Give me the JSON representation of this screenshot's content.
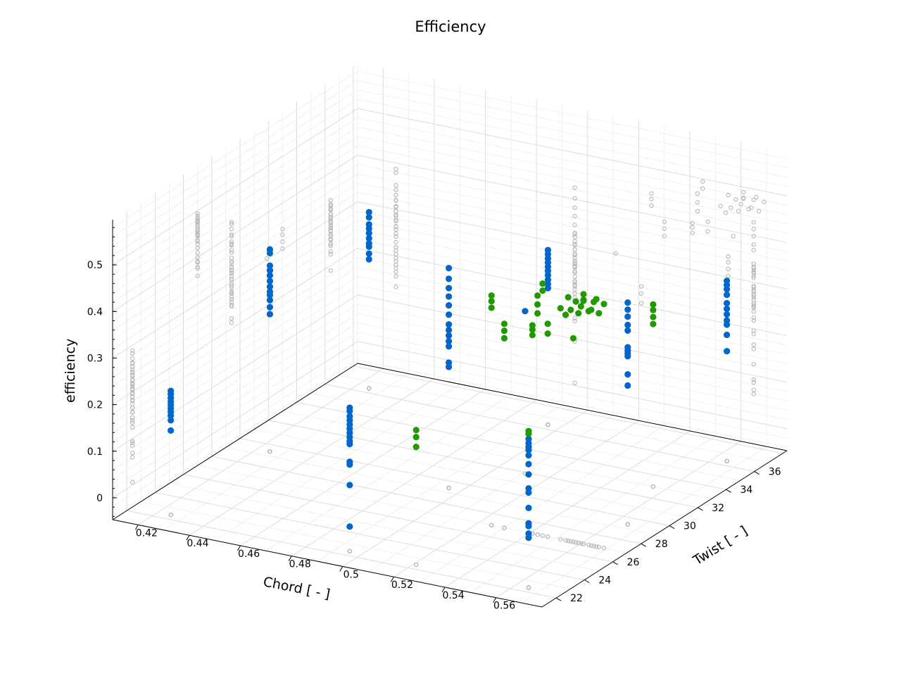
{
  "chart_data": {
    "type": "scatter",
    "title": "Efficiency",
    "xlabel": "Chord [ - ]",
    "ylabel": "Twist [ - ]",
    "zlabel": "efficiency",
    "xlim": [
      0.41,
      0.578
    ],
    "ylim": [
      21,
      38.3
    ],
    "zlim": [
      -0.047,
      0.597
    ],
    "xticks": [
      "0.42",
      "0.44",
      "0.46",
      "0.48",
      "0.5",
      "0.52",
      "0.54",
      "0.56"
    ],
    "yticks": [
      "22",
      "24",
      "26",
      "28",
      "30",
      "32",
      "34",
      "36"
    ],
    "zticks": [
      "0",
      "0.1",
      "0.2",
      "0.3",
      "0.4",
      "0.5"
    ],
    "grid": true,
    "projections": "gray hollow markers on floor and back walls",
    "colors": {
      "blue": "#0066cc",
      "green": "#229900",
      "projection": "#bbbbbb"
    },
    "series": [
      {
        "name": "blue",
        "columns": [
          {
            "chord": 0.425,
            "twist": 22.4,
            "efficiency": [
              0.219,
              0.212,
              0.204,
              0.196,
              0.189,
              0.181,
              0.174,
              0.166,
              0.156,
              0.134
            ]
          },
          {
            "chord": 0.495,
            "twist": 22.4,
            "efficiency": [
              0.261,
              0.254,
              0.243,
              0.234,
              0.225,
              0.216,
              0.207,
              0.198,
              0.189,
              0.183,
              0.145,
              0.139,
              0.095,
              0.006
            ]
          },
          {
            "chord": 0.565,
            "twist": 22.4,
            "efficiency": [
              0.272,
              0.263,
              0.255,
              0.248,
              0.237,
              0.218,
              0.196,
              0.166,
              0.157,
              0.124,
              0.091,
              0.085,
              0.069,
              0.06
            ]
          },
          {
            "chord": 0.425,
            "twist": 29.4,
            "efficiency": [
              0.387,
              0.379,
              0.352,
              0.342,
              0.331,
              0.319,
              0.307,
              0.296,
              0.289,
              0.278,
              0.263,
              0.248
            ]
          },
          {
            "chord": 0.425,
            "twist": 36.4,
            "efficiency": [
              0.331,
              0.32,
              0.305,
              0.296,
              0.286,
              0.275,
              0.264,
              0.257,
              0.242,
              0.23
            ]
          },
          {
            "chord": 0.495,
            "twist": 29.4,
            "efficiency": [
              0.425,
              0.402,
              0.382,
              0.364,
              0.345,
              0.325,
              0.304,
              0.292,
              0.28,
              0.268,
              0.257,
              0.222,
              0.213
            ]
          },
          {
            "chord": 0.495,
            "twist": 36.4,
            "efficiency": [
              0.328,
              0.319,
              0.31,
              0.301,
              0.292,
              0.283,
              0.274,
              0.264,
              0.255,
              0.246
            ]
          },
          {
            "chord": 0.511,
            "twist": 31.9,
            "efficiency": [
              0.302
            ]
          },
          {
            "chord": 0.565,
            "twist": 29.4,
            "efficiency": [
              0.429,
              0.414,
              0.399,
              0.381,
              0.369,
              0.333,
              0.326,
              0.32,
              0.314,
              0.275,
              0.251
            ]
          },
          {
            "chord": 0.565,
            "twist": 36.4,
            "efficiency": [
              0.34,
              0.331,
              0.322,
              0.31,
              0.292,
              0.28,
              0.268,
              0.255,
              0.246,
              0.224,
              0.189
            ]
          }
        ]
      },
      {
        "name": "green",
        "points": [
          [
            0.565,
            22.4,
            0.289
          ],
          [
            0.565,
            22.4,
            0.283
          ],
          [
            0.521,
            22.4,
            0.242
          ],
          [
            0.521,
            22.4,
            0.227
          ],
          [
            0.521,
            22.4,
            0.206
          ],
          [
            0.525,
            27,
            0.446
          ],
          [
            0.525,
            27,
            0.434
          ],
          [
            0.525,
            27,
            0.42
          ],
          [
            0.53,
            27,
            0.391
          ],
          [
            0.53,
            27,
            0.376
          ],
          [
            0.53,
            27,
            0.36
          ],
          [
            0.541,
            27,
            0.4
          ],
          [
            0.541,
            27,
            0.391
          ],
          [
            0.541,
            27,
            0.379
          ],
          [
            0.547,
            27,
            0.41
          ],
          [
            0.547,
            27,
            0.389
          ],
          [
            0.543,
            27,
            0.466
          ],
          [
            0.543,
            27,
            0.447
          ],
          [
            0.543,
            27,
            0.428
          ],
          [
            0.545,
            27,
            0.494
          ],
          [
            0.545,
            27,
            0.479
          ],
          [
            0.552,
            27,
            0.449
          ],
          [
            0.554,
            27,
            0.437
          ],
          [
            0.556,
            27,
            0.45
          ],
          [
            0.558,
            27,
            0.47
          ],
          [
            0.56,
            27,
            0.462
          ],
          [
            0.561,
            27,
            0.477
          ],
          [
            0.561,
            27,
            0.489
          ],
          [
            0.563,
            27,
            0.455
          ],
          [
            0.565,
            27,
            0.477
          ],
          [
            0.566,
            27,
            0.484
          ],
          [
            0.567,
            27,
            0.455
          ],
          [
            0.569,
            27,
            0.477
          ],
          [
            0.555,
            27,
            0.476
          ],
          [
            0.559,
            27,
            0.446
          ],
          [
            0.564,
            27,
            0.459
          ],
          [
            0.561,
            27,
            0.475
          ],
          [
            0.557,
            27,
            0.39
          ],
          [
            0.555,
            33,
            0.344
          ],
          [
            0.555,
            33,
            0.332
          ],
          [
            0.555,
            33,
            0.317
          ],
          [
            0.555,
            33,
            0.302
          ]
        ]
      }
    ]
  }
}
